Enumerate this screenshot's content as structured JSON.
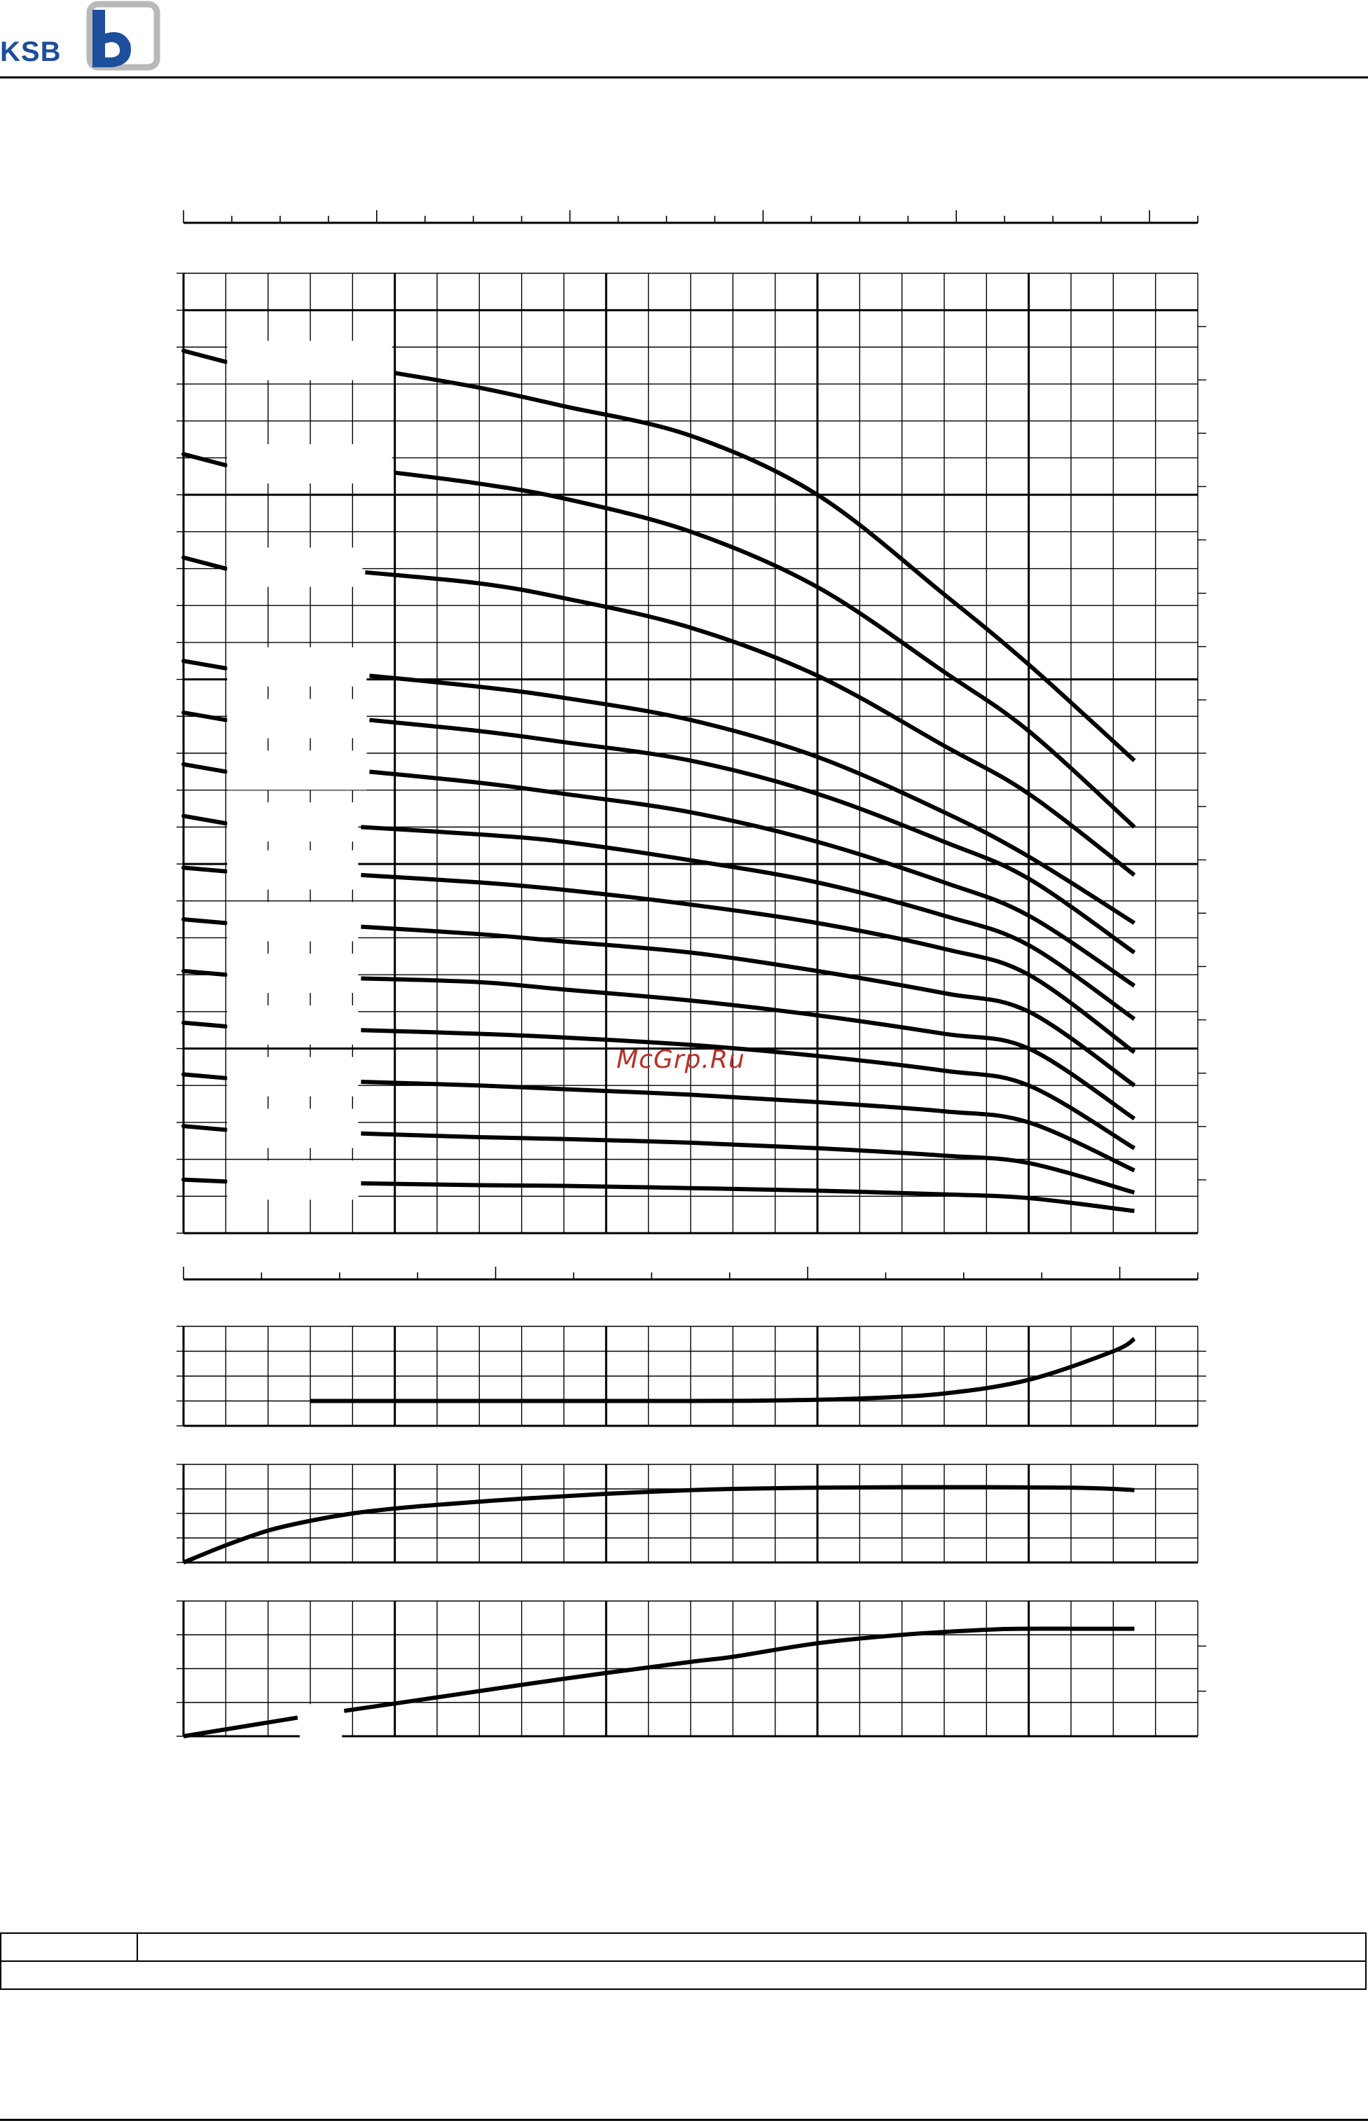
{
  "header": {
    "logo_text": "KSB"
  },
  "watermark": {
    "text": "McGrp.Ru"
  },
  "chart_data": [
    {
      "type": "line",
      "title": "",
      "xlabel": "",
      "ylabel": "",
      "xlim": [
        0,
        24
      ],
      "ylim": [
        0,
        26
      ],
      "grid": true,
      "series": [
        {
          "x": [
            5,
            7,
            9,
            12,
            15,
            18,
            20,
            22.5
          ],
          "y": [
            23.3,
            22.9,
            22.4,
            21.6,
            20.0,
            17.3,
            15.4,
            12.8
          ]
        },
        {
          "x": [
            5,
            7,
            9,
            12,
            15,
            18,
            20,
            22.5
          ],
          "y": [
            20.6,
            20.3,
            19.9,
            19.0,
            17.5,
            15.2,
            13.6,
            11.0
          ]
        },
        {
          "x": [
            4.3,
            7,
            9,
            12,
            15,
            18,
            20,
            22.5
          ],
          "y": [
            17.9,
            17.6,
            17.2,
            16.4,
            15.1,
            13.2,
            11.9,
            9.7
          ]
        },
        {
          "x": [
            4.4,
            7,
            9,
            12,
            15,
            18,
            20,
            22.5
          ],
          "y": [
            15.1,
            14.8,
            14.5,
            13.9,
            12.9,
            11.4,
            10.2,
            8.4
          ]
        },
        {
          "x": [
            4.4,
            7,
            9,
            12,
            15,
            18,
            20,
            22.5
          ],
          "y": [
            13.9,
            13.6,
            13.3,
            12.8,
            11.9,
            10.6,
            9.6,
            7.6
          ]
        },
        {
          "x": [
            4.4,
            7,
            9,
            12,
            15,
            18,
            20,
            22.5
          ],
          "y": [
            12.5,
            12.2,
            11.9,
            11.4,
            10.6,
            9.5,
            8.6,
            6.7
          ]
        },
        {
          "x": [
            4.2,
            7,
            9,
            12,
            15,
            18,
            20,
            22.5
          ],
          "y": [
            11.0,
            10.8,
            10.6,
            10.1,
            9.5,
            8.6,
            7.8,
            5.8
          ]
        },
        {
          "x": [
            4.2,
            7,
            9,
            12,
            15,
            18,
            20,
            22.5
          ],
          "y": [
            9.7,
            9.5,
            9.3,
            8.9,
            8.4,
            7.7,
            7.0,
            4.9
          ]
        },
        {
          "x": [
            4.2,
            7,
            9,
            12,
            15,
            18,
            20,
            22.5
          ],
          "y": [
            8.3,
            8.1,
            7.9,
            7.6,
            7.1,
            6.5,
            6.0,
            4.0
          ]
        },
        {
          "x": [
            4.2,
            7,
            9,
            12,
            15,
            18,
            20,
            22.5
          ],
          "y": [
            6.9,
            6.8,
            6.6,
            6.3,
            5.9,
            5.4,
            5.0,
            3.1
          ]
        },
        {
          "x": [
            4.2,
            7,
            9,
            12,
            15,
            18,
            20,
            22.5
          ],
          "y": [
            5.5,
            5.4,
            5.3,
            5.1,
            4.8,
            4.4,
            4.0,
            2.3
          ]
        },
        {
          "x": [
            4.2,
            7,
            9,
            12,
            15,
            18,
            20,
            22.5
          ],
          "y": [
            4.1,
            4.0,
            3.9,
            3.75,
            3.55,
            3.3,
            3.0,
            1.7
          ]
        },
        {
          "x": [
            4.2,
            7,
            9,
            12,
            15,
            18,
            20,
            22.5
          ],
          "y": [
            2.7,
            2.6,
            2.55,
            2.45,
            2.3,
            2.1,
            1.9,
            1.1
          ]
        },
        {
          "x": [
            4.2,
            7,
            9,
            12,
            15,
            18,
            20,
            22.5
          ],
          "y": [
            1.35,
            1.3,
            1.28,
            1.22,
            1.15,
            1.05,
            0.95,
            0.6
          ]
        }
      ],
      "stubs": [
        {
          "y0": 23.9,
          "y1": 23.6
        },
        {
          "y0": 21.1,
          "y1": 20.8
        },
        {
          "y0": 18.3,
          "y1": 18.0
        },
        {
          "y0": 15.5,
          "y1": 15.3
        },
        {
          "y0": 14.1,
          "y1": 13.9
        },
        {
          "y0": 12.7,
          "y1": 12.5
        },
        {
          "y0": 11.3,
          "y1": 11.1
        },
        {
          "y0": 9.9,
          "y1": 9.8
        },
        {
          "y0": 8.5,
          "y1": 8.4
        },
        {
          "y0": 7.1,
          "y1": 7.0
        },
        {
          "y0": 5.7,
          "y1": 5.6
        },
        {
          "y0": 4.3,
          "y1": 4.2
        },
        {
          "y0": 2.9,
          "y1": 2.8
        },
        {
          "y0": 1.45,
          "y1": 1.4
        }
      ]
    },
    {
      "type": "line",
      "title": "",
      "xlim": [
        0,
        24
      ],
      "ylim": [
        0,
        4
      ],
      "grid": true,
      "series": [
        {
          "x": [
            3,
            6,
            9,
            12,
            14,
            16,
            18,
            20,
            22,
            22.5
          ],
          "y": [
            1.0,
            1.0,
            1.0,
            1.0,
            1.02,
            1.1,
            1.3,
            1.85,
            3.0,
            3.5
          ]
        }
      ]
    },
    {
      "type": "line",
      "title": "",
      "xlim": [
        0,
        24
      ],
      "ylim": [
        0,
        4
      ],
      "grid": true,
      "series": [
        {
          "x": [
            0,
            1,
            2,
            3,
            4,
            5,
            6,
            8,
            10,
            12,
            13,
            15,
            17,
            19,
            20,
            21,
            22,
            22.5
          ],
          "y": [
            0.0,
            0.7,
            1.3,
            1.7,
            2.0,
            2.2,
            2.35,
            2.6,
            2.8,
            2.95,
            3.0,
            3.05,
            3.07,
            3.07,
            3.06,
            3.05,
            3.0,
            2.95
          ]
        }
      ]
    },
    {
      "type": "line",
      "title": "",
      "xlim": [
        0,
        24
      ],
      "ylim": [
        0,
        4
      ],
      "grid": true,
      "series": [
        {
          "x": [
            0,
            2.7
          ],
          "y": [
            0.0,
            0.55
          ]
        },
        {
          "x": [
            3.8,
            6,
            9,
            12,
            13,
            15,
            17,
            19,
            20,
            21,
            22,
            22.5
          ],
          "y": [
            0.75,
            1.15,
            1.7,
            2.2,
            2.35,
            2.75,
            3.0,
            3.15,
            3.18,
            3.18,
            3.18,
            3.18
          ]
        }
      ]
    }
  ]
}
